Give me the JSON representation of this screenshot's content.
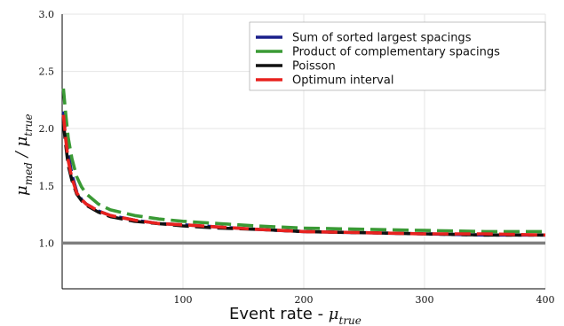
{
  "chart_data": {
    "type": "line",
    "xlabel": {
      "text": "Event rate - ",
      "symbol": "μ",
      "sub": "true"
    },
    "ylabel": {
      "num": "μ",
      "num_sub": "med",
      "sep": " / ",
      "den": "μ",
      "den_sub": "true"
    },
    "xlim": [
      0,
      400
    ],
    "ylim": [
      0.6,
      3.0
    ],
    "x_ticks": [
      100,
      200,
      300,
      400
    ],
    "y_ticks": [
      1.0,
      1.5,
      2.0,
      2.5,
      3.0
    ],
    "x_tick_labels": [
      "100",
      "200",
      "300",
      "400"
    ],
    "y_tick_labels": [
      "1.0",
      "1.5",
      "2.0",
      "2.5",
      "3.0"
    ],
    "grid": true,
    "legend_position": "top-right",
    "reference_line": {
      "y": 1.0,
      "color": "#7f7f7f"
    },
    "series": [
      {
        "name": "Sum of sorted largest spacings",
        "color": "#1a1f8a",
        "dash": "long",
        "x": [
          1,
          3,
          5,
          8,
          12,
          16,
          20,
          30,
          40,
          60,
          80,
          100,
          130,
          160,
          200,
          250,
          300,
          350,
          400
        ],
        "y": [
          2.15,
          1.95,
          1.78,
          1.6,
          1.45,
          1.38,
          1.34,
          1.28,
          1.24,
          1.2,
          1.17,
          1.16,
          1.14,
          1.12,
          1.1,
          1.09,
          1.08,
          1.07,
          1.07
        ]
      },
      {
        "name": "Product of complementary spacings",
        "color": "#3a9a35",
        "dash": "long",
        "x": [
          1,
          3,
          5,
          8,
          12,
          16,
          20,
          30,
          40,
          60,
          80,
          100,
          130,
          160,
          200,
          250,
          300,
          350,
          400
        ],
        "y": [
          2.35,
          2.12,
          1.92,
          1.74,
          1.58,
          1.49,
          1.43,
          1.34,
          1.29,
          1.24,
          1.21,
          1.19,
          1.17,
          1.15,
          1.13,
          1.12,
          1.11,
          1.1,
          1.1
        ]
      },
      {
        "name": "Poisson",
        "color": "#111111",
        "dash": "long",
        "x": [
          1,
          3,
          5,
          8,
          12,
          16,
          20,
          30,
          40,
          60,
          80,
          100,
          130,
          160,
          200,
          250,
          300,
          350,
          400
        ],
        "y": [
          2.05,
          1.85,
          1.68,
          1.55,
          1.43,
          1.37,
          1.33,
          1.27,
          1.23,
          1.19,
          1.17,
          1.15,
          1.13,
          1.12,
          1.1,
          1.09,
          1.08,
          1.07,
          1.07
        ]
      },
      {
        "name": "Optimum interval",
        "color": "#e8221f",
        "dash": "long",
        "x": [
          1,
          3,
          5,
          8,
          12,
          16,
          20,
          30,
          40,
          60,
          80,
          100,
          130,
          160,
          200,
          250,
          300,
          350,
          400
        ],
        "y": [
          2.12,
          1.9,
          1.72,
          1.57,
          1.44,
          1.38,
          1.34,
          1.28,
          1.24,
          1.2,
          1.17,
          1.16,
          1.14,
          1.12,
          1.1,
          1.09,
          1.08,
          1.08,
          1.07
        ]
      }
    ]
  }
}
